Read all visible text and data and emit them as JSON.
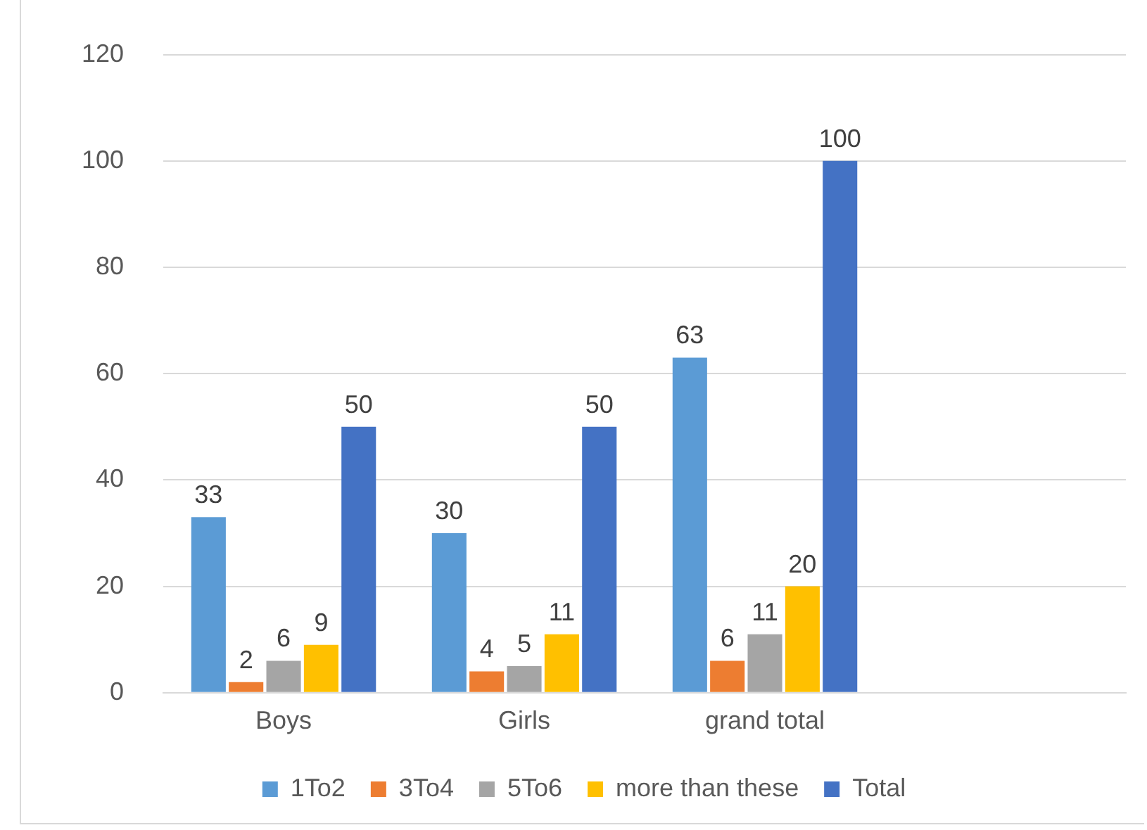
{
  "chart_data": {
    "type": "bar",
    "categories": [
      "Boys",
      "Girls",
      "grand total",
      null
    ],
    "series": [
      {
        "name": "1To2",
        "color": "#5b9bd5",
        "values": [
          33,
          30,
          63,
          null
        ]
      },
      {
        "name": "3To4",
        "color": "#ed7d31",
        "values": [
          2,
          4,
          6,
          null
        ]
      },
      {
        "name": "5To6",
        "color": "#a5a5a5",
        "values": [
          6,
          5,
          11,
          null
        ]
      },
      {
        "name": "more than these",
        "color": "#ffc000",
        "values": [
          9,
          11,
          20,
          null
        ]
      },
      {
        "name": "Total",
        "color": "#4472c4",
        "values": [
          50,
          50,
          100,
          null
        ]
      }
    ],
    "ylim": [
      0,
      120
    ],
    "yticks": [
      0,
      20,
      40,
      60,
      80,
      100,
      120
    ],
    "grid": "y",
    "legend": "bottom",
    "data_labels": true
  }
}
